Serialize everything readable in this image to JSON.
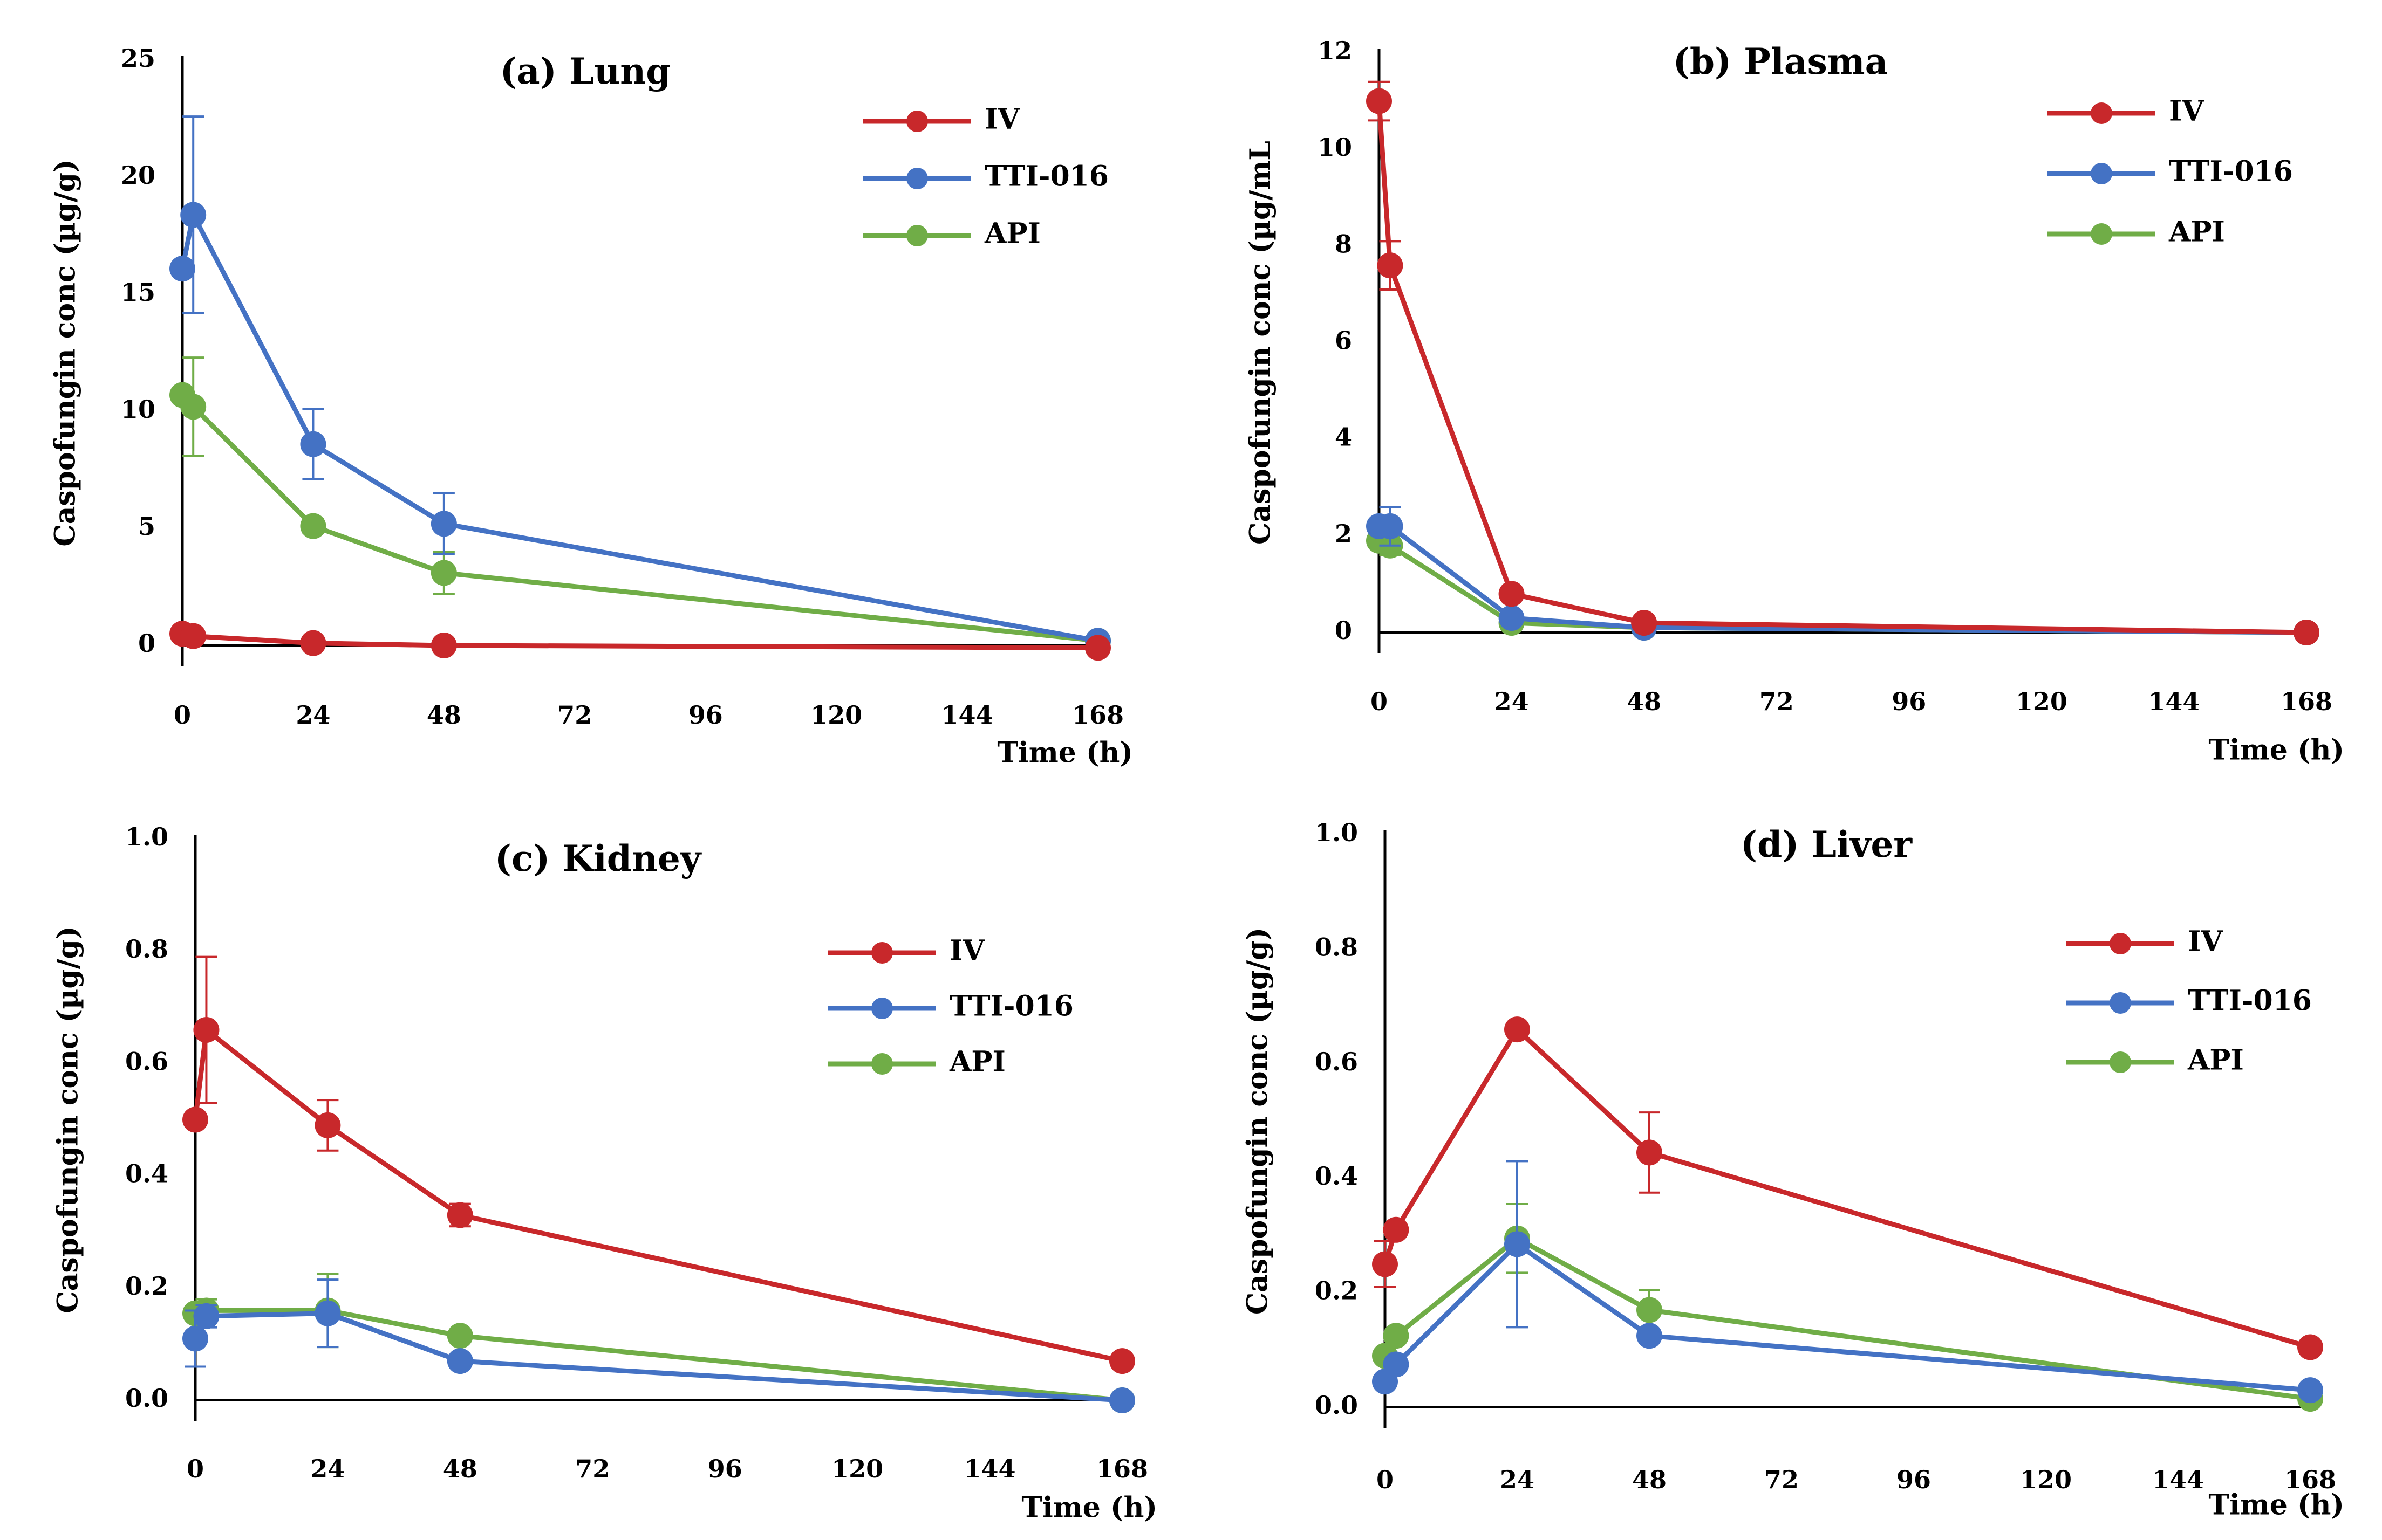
{
  "colors": {
    "IV": "#C8282B",
    "TTI-016": "#4472C4",
    "API": "#70AD47",
    "axis": "#000000"
  },
  "chart_data": [
    {
      "type": "line",
      "title": "(a) Lung",
      "xlabel": "Time (h)",
      "ylabel": "Caspofungin conc (µg/g)",
      "xticks": [
        "0",
        "24",
        "48",
        "72",
        "96",
        "120",
        "144",
        "168"
      ],
      "yticks": [
        "0",
        "5",
        "10",
        "15",
        "20",
        "25"
      ],
      "xlim": [
        0,
        168
      ],
      "ylim": [
        0,
        25
      ],
      "legend": "top-right",
      "x": [
        0,
        2,
        24,
        48,
        168
      ],
      "series": [
        {
          "name": "IV",
          "values": [
            0.5,
            0.4,
            0.1,
            0.0,
            -0.1
          ],
          "errors": [
            0,
            0,
            0,
            0,
            0
          ]
        },
        {
          "name": "TTI-016",
          "values": [
            16.1,
            18.4,
            8.6,
            5.2,
            0.2
          ],
          "errors": [
            0,
            4.2,
            1.5,
            1.3,
            0
          ]
        },
        {
          "name": "API",
          "values": [
            10.7,
            10.2,
            5.1,
            3.1,
            0.2
          ],
          "errors": [
            0,
            2.1,
            0.3,
            0.9,
            0
          ]
        }
      ]
    },
    {
      "type": "line",
      "title": "(b) Plasma",
      "xlabel": "Time (h)",
      "ylabel": "Caspofungin conc (µg/mL",
      "xticks": [
        "0",
        "24",
        "48",
        "72",
        "96",
        "120",
        "144",
        "168"
      ],
      "yticks": [
        "0",
        "2",
        "4",
        "6",
        "8",
        "10",
        "12"
      ],
      "xlim": [
        0,
        168
      ],
      "ylim": [
        0,
        12
      ],
      "legend": "top-right",
      "x": [
        0,
        2,
        24,
        48,
        168
      ],
      "series": [
        {
          "name": "IV",
          "values": [
            11.0,
            7.6,
            0.8,
            0.2,
            0.0
          ],
          "errors": [
            0.4,
            0.5,
            0,
            0,
            0
          ]
        },
        {
          "name": "TTI-016",
          "values": [
            2.2,
            2.2,
            0.3,
            0.1,
            0.0
          ],
          "errors": [
            0,
            0.4,
            0,
            0,
            0
          ]
        },
        {
          "name": "API",
          "values": [
            1.9,
            1.8,
            0.2,
            0.1,
            0.0
          ],
          "errors": [
            0,
            0.2,
            0,
            0,
            0
          ]
        }
      ]
    },
    {
      "type": "line",
      "title": "(c) Kidney",
      "xlabel": "Time (h)",
      "ylabel": "Caspofungin conc (µg/g)",
      "xticks": [
        "0",
        "24",
        "48",
        "72",
        "96",
        "120",
        "144",
        "168"
      ],
      "yticks": [
        "0.0",
        "0.2",
        "0.4",
        "0.6",
        "0.8",
        "1.0"
      ],
      "xlim": [
        0,
        168
      ],
      "ylim": [
        0,
        1
      ],
      "legend": "top-right",
      "x": [
        0,
        2,
        24,
        48,
        168
      ],
      "series": [
        {
          "name": "IV",
          "values": [
            0.5,
            0.66,
            0.49,
            0.33,
            0.07
          ],
          "errors": [
            0,
            0.13,
            0.045,
            0.02,
            0
          ]
        },
        {
          "name": "TTI-016",
          "values": [
            0.11,
            0.15,
            0.155,
            0.07,
            0.0
          ],
          "errors": [
            0.05,
            0.02,
            0.06,
            0.01,
            0
          ]
        },
        {
          "name": "API",
          "values": [
            0.155,
            0.16,
            0.16,
            0.115,
            0.0
          ],
          "errors": [
            0,
            0.02,
            0.065,
            0.01,
            0
          ]
        }
      ]
    },
    {
      "type": "line",
      "title": "(d) Liver",
      "xlabel": "Time (h)",
      "ylabel": "Caspofungin conc (µg/g)",
      "xticks": [
        "0",
        "24",
        "48",
        "72",
        "96",
        "120",
        "144",
        "168"
      ],
      "yticks": [
        "0.0",
        "0.2",
        "0.4",
        "0.6",
        "0.8",
        "1.0"
      ],
      "xlim": [
        0,
        168
      ],
      "ylim": [
        0,
        1
      ],
      "legend": "top-right",
      "x": [
        0,
        2,
        24,
        48,
        168
      ],
      "series": [
        {
          "name": "IV",
          "values": [
            0.25,
            0.31,
            0.66,
            0.445,
            0.105
          ],
          "errors": [
            0.04,
            0.01,
            0.01,
            0.07,
            0
          ]
        },
        {
          "name": "TTI-016",
          "values": [
            0.045,
            0.075,
            0.285,
            0.125,
            0.03
          ],
          "errors": [
            0,
            0.01,
            0.145,
            0.01,
            0
          ]
        },
        {
          "name": "API",
          "values": [
            0.09,
            0.125,
            0.295,
            0.17,
            0.015
          ],
          "errors": [
            0,
            0.01,
            0.06,
            0.035,
            0
          ]
        }
      ]
    }
  ]
}
